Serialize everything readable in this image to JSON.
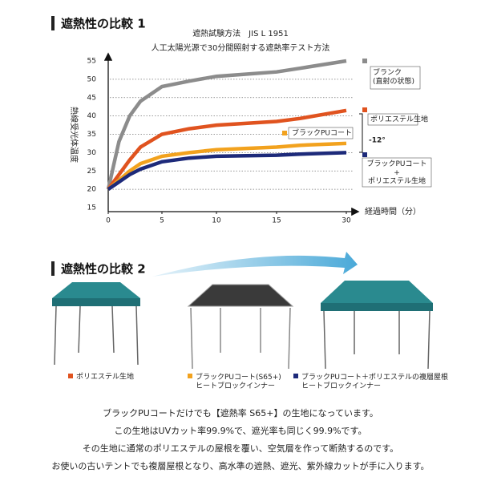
{
  "section1": {
    "heading": "遮熱性の比較 1"
  },
  "chart_data": {
    "type": "line",
    "title": "遮熱試験方法　JIS L 1951",
    "subtitle": "人工太陽光源で30分間照射する遮熱率テスト方法",
    "xlabel": "経過時間（分）",
    "ylabel": "熱線受光体温度",
    "x": [
      0,
      1,
      2,
      3,
      5,
      7.5,
      10,
      15,
      20,
      30
    ],
    "xlim": [
      0,
      30
    ],
    "xticks": [
      0,
      5,
      10,
      15,
      30
    ],
    "ylim": [
      15,
      55
    ],
    "yticks": [
      15,
      20,
      25,
      30,
      35,
      40,
      45,
      50,
      55
    ],
    "grid": true,
    "series": [
      {
        "name": "ブランク\n(直射の状態)",
        "color": "#8c8c8c",
        "values": [
          20,
          33,
          40,
          44,
          48,
          49.5,
          50.8,
          52,
          53,
          55
        ]
      },
      {
        "name": "ポリエステル生地",
        "color": "#e0531f",
        "values": [
          20,
          24,
          28,
          31.5,
          35,
          36.5,
          37.5,
          38.5,
          39.3,
          41.5
        ]
      },
      {
        "name": "ブラックPUコート",
        "color": "#f2a21e",
        "values": [
          20,
          22.5,
          25,
          27,
          29,
          30,
          30.8,
          31.5,
          32,
          32.5
        ]
      },
      {
        "name": "ブラックPUコート\n+\nポリエステル生地",
        "color": "#1d2a7a",
        "values": [
          20,
          22,
          24,
          25.5,
          27.5,
          28.5,
          29,
          29.3,
          29.6,
          30
        ]
      }
    ],
    "annotation": "-12°"
  },
  "section2": {
    "heading": "遮熱性の比較 2",
    "legend": [
      {
        "label": "ポリエステル生地",
        "color": "#e0531f"
      },
      {
        "label": "ブラックPUコート(S65+)\nヒートブロックインナー",
        "color": "#f2a21e"
      },
      {
        "label": "ブラックPUコート＋ポリエステルの複層屋根\nヒートブロックインナー",
        "color": "#1d2a7a"
      }
    ]
  },
  "body": [
    "ブラックPUコートだけでも【遮熱率 S65+】の生地になっています。",
    "この生地はUVカット率99.9%で、遮光率も同じく99.9%です。",
    "その生地に通常のポリエステルの屋根を覆い、空気層を作って断熱するのです。",
    "お使いの古いテントでも複層屋根となり、高水準の遮熱、遮光、紫外線カットが手に入ります。"
  ]
}
